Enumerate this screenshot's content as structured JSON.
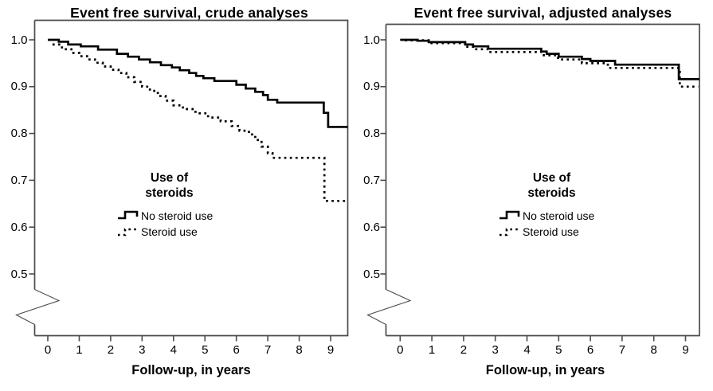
{
  "figure": {
    "background": "#ffffff",
    "curve_color": "#000000",
    "frame_color": "#4b4b4b",
    "text_color": "#000000"
  },
  "chart_data": [
    {
      "type": "line",
      "subtype": "kaplan_meier_step_survival",
      "title": "Event free survival, crude analyses",
      "xlabel": "Follow-up, in years",
      "ylabel": "",
      "x_ticks": [
        0,
        1,
        2,
        3,
        4,
        5,
        6,
        7,
        8,
        9
      ],
      "y_ticks": [
        "1.0",
        "0.9",
        "0.8",
        "0.7",
        "0.6",
        "0.5"
      ],
      "y_tick_values": [
        1.0,
        0.9,
        0.8,
        0.7,
        0.6,
        0.5
      ],
      "ylim": [
        0.5,
        1.0
      ],
      "xlim": [
        -0.45,
        9.55
      ],
      "y_axis_break": true,
      "grid": false,
      "legend": {
        "title_line1": "Use of",
        "title_line2": "steroids",
        "position": "inside-center",
        "items": [
          {
            "label": "No steroid use",
            "style": "solid"
          },
          {
            "label": "Steroid use",
            "style": "dotted"
          }
        ]
      },
      "series": [
        {
          "name": "No steroid use",
          "style": "solid",
          "x_end": 9.54,
          "step_points": [
            [
              0,
              1.0
            ],
            [
              0.35,
              0.996
            ],
            [
              0.65,
              0.99
            ],
            [
              1.05,
              0.986
            ],
            [
              1.6,
              0.979
            ],
            [
              2.2,
              0.97
            ],
            [
              2.55,
              0.964
            ],
            [
              2.9,
              0.958
            ],
            [
              3.25,
              0.952
            ],
            [
              3.6,
              0.946
            ],
            [
              3.95,
              0.941
            ],
            [
              4.2,
              0.935
            ],
            [
              4.5,
              0.929
            ],
            [
              4.72,
              0.923
            ],
            [
              4.95,
              0.918
            ],
            [
              5.3,
              0.912
            ],
            [
              6.0,
              0.904
            ],
            [
              6.3,
              0.896
            ],
            [
              6.6,
              0.889
            ],
            [
              6.85,
              0.882
            ],
            [
              7.0,
              0.872
            ],
            [
              7.3,
              0.866
            ],
            [
              8.78,
              0.844
            ],
            [
              8.92,
              0.814
            ]
          ]
        },
        {
          "name": "Steroid use",
          "style": "dotted",
          "x_end": 9.5,
          "step_points": [
            [
              0.15,
              0.99
            ],
            [
              0.45,
              0.98
            ],
            [
              0.75,
              0.972
            ],
            [
              1.0,
              0.965
            ],
            [
              1.25,
              0.958
            ],
            [
              1.5,
              0.951
            ],
            [
              1.75,
              0.943
            ],
            [
              2.0,
              0.936
            ],
            [
              2.25,
              0.929
            ],
            [
              2.5,
              0.92
            ],
            [
              2.75,
              0.91
            ],
            [
              3.0,
              0.9
            ],
            [
              3.25,
              0.891
            ],
            [
              3.5,
              0.88
            ],
            [
              3.75,
              0.87
            ],
            [
              4.0,
              0.86
            ],
            [
              4.3,
              0.852
            ],
            [
              4.7,
              0.843
            ],
            [
              5.1,
              0.834
            ],
            [
              5.5,
              0.826
            ],
            [
              5.85,
              0.816
            ],
            [
              6.1,
              0.806
            ],
            [
              6.4,
              0.798
            ],
            [
              6.6,
              0.786
            ],
            [
              6.8,
              0.772
            ],
            [
              7.0,
              0.758
            ],
            [
              7.15,
              0.748
            ],
            [
              8.8,
              0.656
            ]
          ]
        }
      ]
    },
    {
      "type": "line",
      "subtype": "kaplan_meier_step_survival",
      "title": "Event free survival, adjusted analyses",
      "xlabel": "Follow-up, in years",
      "ylabel": "",
      "x_ticks": [
        0,
        1,
        2,
        3,
        4,
        5,
        6,
        7,
        8,
        9
      ],
      "y_ticks": [
        "1.0",
        "0.9",
        "0.8",
        "0.7",
        "0.6",
        "0.5"
      ],
      "y_tick_values": [
        1.0,
        0.9,
        0.8,
        0.7,
        0.6,
        0.5
      ],
      "ylim": [
        0.5,
        1.0
      ],
      "xlim": [
        -0.45,
        9.45
      ],
      "y_axis_break": true,
      "grid": false,
      "legend": {
        "title_line1": "Use of",
        "title_line2": "steroids",
        "position": "inside-center",
        "items": [
          {
            "label": "No steroid use",
            "style": "solid"
          },
          {
            "label": "Steroid use",
            "style": "dotted"
          }
        ]
      },
      "series": [
        {
          "name": "No steroid use",
          "style": "solid",
          "x_end": 9.44,
          "step_points": [
            [
              0,
              1.0
            ],
            [
              0.55,
              0.998
            ],
            [
              0.9,
              0.995
            ],
            [
              2.05,
              0.99
            ],
            [
              2.3,
              0.986
            ],
            [
              2.78,
              0.981
            ],
            [
              4.45,
              0.975
            ],
            [
              4.62,
              0.97
            ],
            [
              5.0,
              0.964
            ],
            [
              5.73,
              0.959
            ],
            [
              6.0,
              0.955
            ],
            [
              6.78,
              0.947
            ],
            [
              8.79,
              0.916
            ]
          ]
        },
        {
          "name": "Steroid use",
          "style": "dotted",
          "x_end": 9.4,
          "step_points": [
            [
              0.15,
              0.999
            ],
            [
              0.9,
              0.993
            ],
            [
              2.05,
              0.985
            ],
            [
              2.4,
              0.98
            ],
            [
              2.78,
              0.974
            ],
            [
              4.47,
              0.967
            ],
            [
              4.98,
              0.958
            ],
            [
              5.73,
              0.95
            ],
            [
              6.55,
              0.94
            ],
            [
              8.82,
              0.9
            ]
          ]
        }
      ]
    }
  ]
}
